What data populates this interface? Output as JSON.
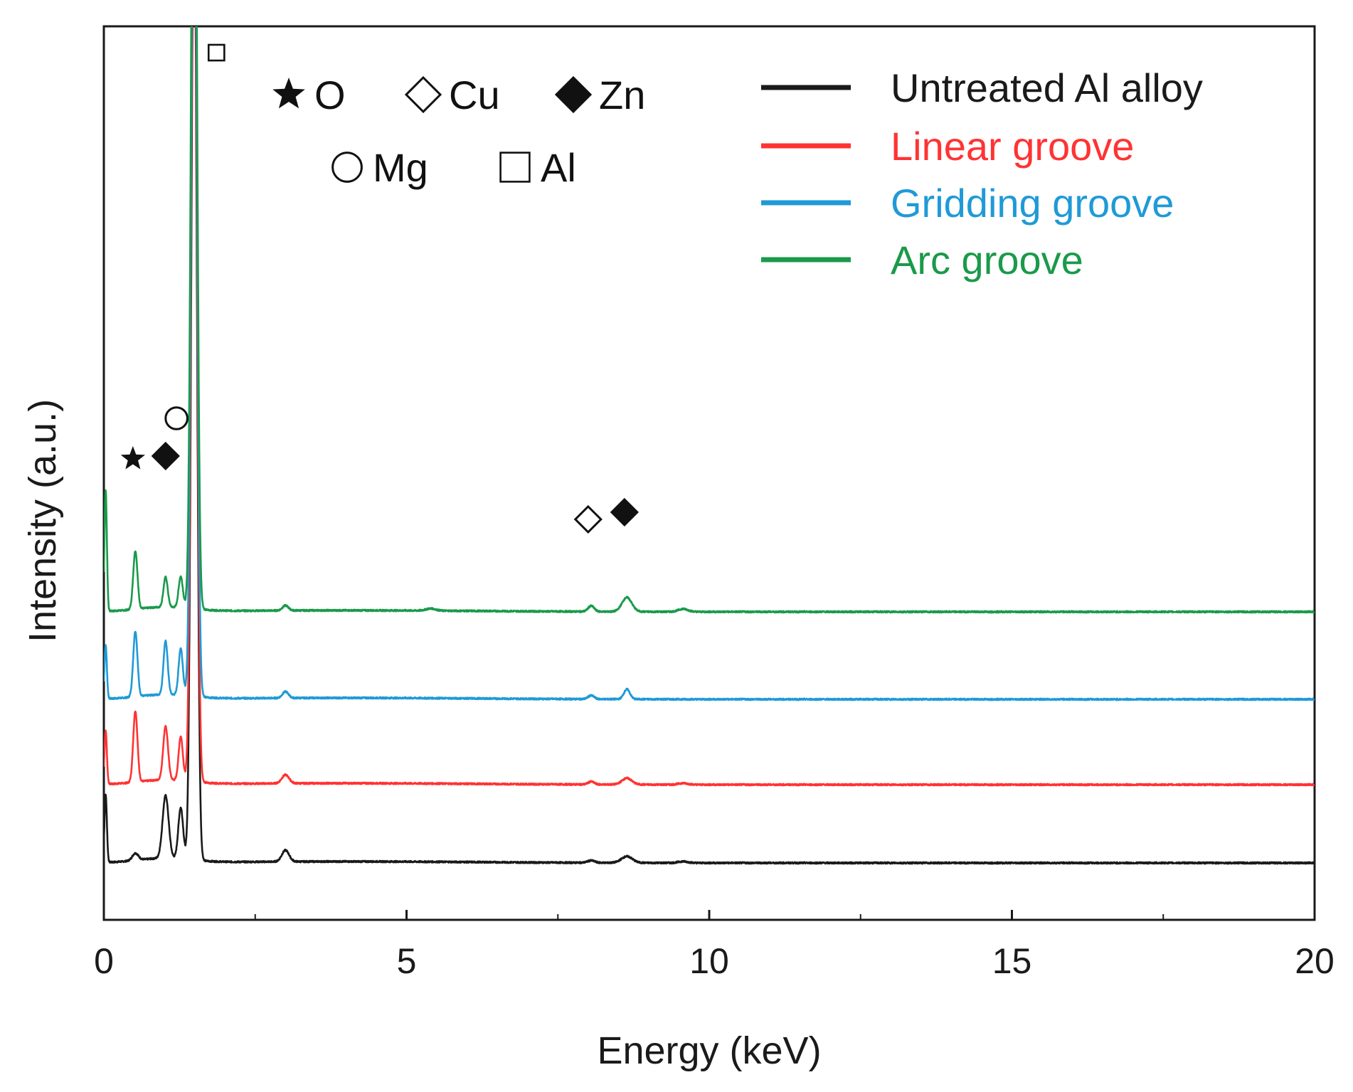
{
  "chart_data": {
    "type": "line",
    "title": "",
    "xlabel": "Energy (keV)",
    "ylabel": "Intensity (a.u.)",
    "xlim": [
      0,
      20
    ],
    "x_ticks": [
      "0",
      "5",
      "10",
      "15",
      "20"
    ],
    "y_ticks": [],
    "grid": false,
    "legend_position": "top-right",
    "series": [
      {
        "name": "Untreated Al alloy",
        "color": "#1a1a1a",
        "baseline": 0,
        "peaks": [
          {
            "e": 0.03,
            "h": 95,
            "w": 0.02
          },
          {
            "e": 0.52,
            "h": 10,
            "w": 0.05
          },
          {
            "e": 1.02,
            "h": 88,
            "w": 0.05
          },
          {
            "e": 1.27,
            "h": 72,
            "w": 0.04
          },
          {
            "e": 1.49,
            "h": 1400,
            "w": 0.045
          },
          {
            "e": 3.0,
            "h": 16,
            "w": 0.06
          },
          {
            "e": 8.05,
            "h": 3,
            "w": 0.06
          },
          {
            "e": 8.64,
            "h": 9,
            "w": 0.09
          },
          {
            "e": 9.57,
            "h": 2,
            "w": 0.08
          }
        ]
      },
      {
        "name": "Linear groove",
        "color": "#ff3333",
        "baseline": 110,
        "peaks": [
          {
            "e": 0.03,
            "h": 75,
            "w": 0.02
          },
          {
            "e": 0.52,
            "h": 100,
            "w": 0.035
          },
          {
            "e": 1.02,
            "h": 75,
            "w": 0.04
          },
          {
            "e": 1.27,
            "h": 62,
            "w": 0.035
          },
          {
            "e": 1.49,
            "h": 1400,
            "w": 0.045
          },
          {
            "e": 3.0,
            "h": 12,
            "w": 0.06
          },
          {
            "e": 8.05,
            "h": 4,
            "w": 0.05
          },
          {
            "e": 8.64,
            "h": 9,
            "w": 0.08
          },
          {
            "e": 9.57,
            "h": 2,
            "w": 0.08
          }
        ]
      },
      {
        "name": "Gridding groove",
        "color": "#1f9ad6",
        "baseline": 230,
        "peaks": [
          {
            "e": 0.03,
            "h": 75,
            "w": 0.02
          },
          {
            "e": 0.52,
            "h": 92,
            "w": 0.035
          },
          {
            "e": 1.02,
            "h": 75,
            "w": 0.035
          },
          {
            "e": 1.27,
            "h": 66,
            "w": 0.035
          },
          {
            "e": 1.49,
            "h": 1400,
            "w": 0.045
          },
          {
            "e": 3.0,
            "h": 9,
            "w": 0.05
          },
          {
            "e": 8.05,
            "h": 5,
            "w": 0.05
          },
          {
            "e": 8.64,
            "h": 14,
            "w": 0.05
          }
        ]
      },
      {
        "name": "Arc groove",
        "color": "#1a9a4a",
        "baseline": 353,
        "peaks": [
          {
            "e": 0.03,
            "h": 170,
            "w": 0.02
          },
          {
            "e": 0.52,
            "h": 82,
            "w": 0.035
          },
          {
            "e": 1.02,
            "h": 42,
            "w": 0.035
          },
          {
            "e": 1.27,
            "h": 44,
            "w": 0.035
          },
          {
            "e": 1.49,
            "h": 1400,
            "w": 0.045
          },
          {
            "e": 3.0,
            "h": 7,
            "w": 0.05
          },
          {
            "e": 5.4,
            "h": 3,
            "w": 0.08
          },
          {
            "e": 8.05,
            "h": 8,
            "w": 0.05
          },
          {
            "e": 8.64,
            "h": 20,
            "w": 0.08
          },
          {
            "e": 9.57,
            "h": 4,
            "w": 0.08
          }
        ]
      }
    ],
    "element_key": [
      {
        "symbol": "filled-star",
        "label": "O"
      },
      {
        "symbol": "open-diamond",
        "label": "Cu"
      },
      {
        "symbol": "filled-diamond",
        "label": "Zn"
      },
      {
        "symbol": "open-circle",
        "label": "Mg"
      },
      {
        "symbol": "open-square",
        "label": "Al"
      }
    ],
    "peak_markers": [
      {
        "symbol": "filled-star",
        "element": "O",
        "energy": 0.48
      },
      {
        "symbol": "filled-diamond",
        "element": "Zn",
        "energy": 1.02
      },
      {
        "symbol": "open-circle",
        "element": "Mg",
        "energy": 1.2
      },
      {
        "symbol": "open-square",
        "element": "Al",
        "energy": 1.86
      },
      {
        "symbol": "open-diamond",
        "element": "Cu",
        "energy": 8.0
      },
      {
        "symbol": "filled-diamond",
        "element": "Zn",
        "energy": 8.6
      }
    ]
  }
}
